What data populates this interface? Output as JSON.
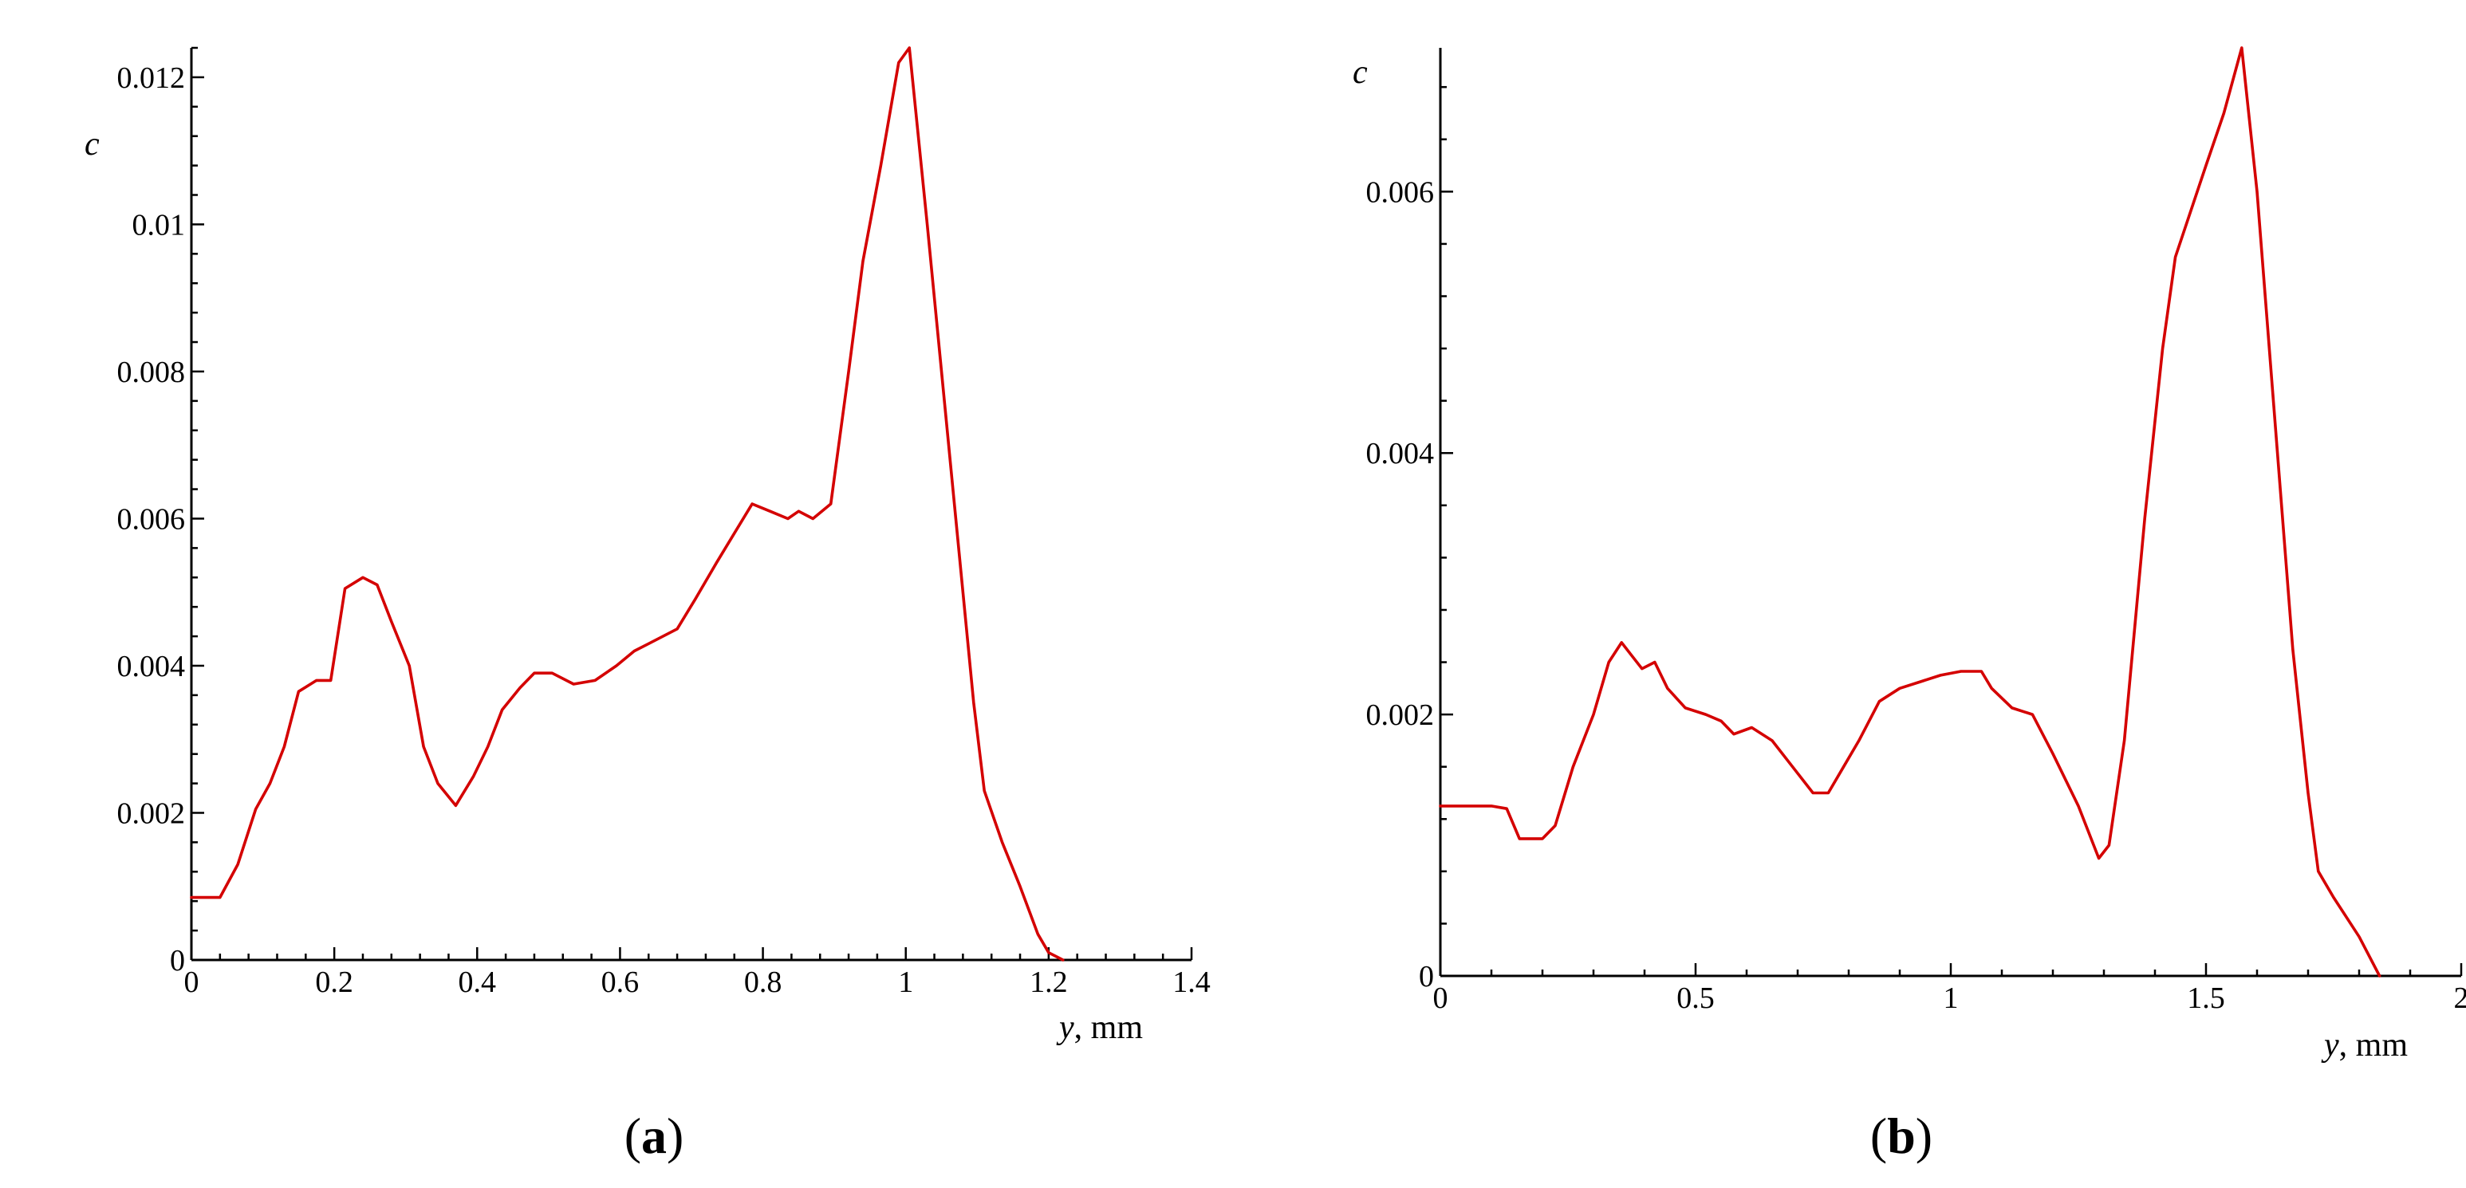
{
  "chart_data": [
    {
      "type": "line",
      "panel_label": "a",
      "ylabel": "c",
      "xlabel_var": "y",
      "xlabel_unit": ", mm",
      "xlim": [
        0,
        1.4
      ],
      "ylim": [
        0,
        0.0124
      ],
      "x_ticks": [
        {
          "value": 0,
          "label": "0"
        },
        {
          "value": 0.2,
          "label": "0.2"
        },
        {
          "value": 0.4,
          "label": "0.4"
        },
        {
          "value": 0.6,
          "label": "0.6"
        },
        {
          "value": 0.8,
          "label": "0.8"
        },
        {
          "value": 1,
          "label": "1"
        },
        {
          "value": 1.2,
          "label": "1.2"
        },
        {
          "value": 1.4,
          "label": "1.4"
        }
      ],
      "y_ticks": [
        {
          "value": 0,
          "label": "0"
        },
        {
          "value": 0.002,
          "label": "0.002"
        },
        {
          "value": 0.004,
          "label": "0.004"
        },
        {
          "value": 0.006,
          "label": "0.006"
        },
        {
          "value": 0.008,
          "label": "0.008"
        },
        {
          "value": 0.01,
          "label": "0.01"
        },
        {
          "value": 0.012,
          "label": "0.012"
        }
      ],
      "color": "#d40000",
      "series": [
        {
          "x": [
            0,
            0.04,
            0.065,
            0.09,
            0.11,
            0.13,
            0.15,
            0.175,
            0.195,
            0.215,
            0.24,
            0.26,
            0.28,
            0.305,
            0.325,
            0.345,
            0.37,
            0.395,
            0.415,
            0.435,
            0.46,
            0.48,
            0.505,
            0.535,
            0.565,
            0.595,
            0.62,
            0.64,
            0.68,
            0.705,
            0.735,
            0.76,
            0.785,
            0.81,
            0.835,
            0.85,
            0.87,
            0.895,
            0.92,
            0.94,
            0.965,
            0.99,
            1.005,
            1.03,
            1.055,
            1.075,
            1.095,
            1.11,
            1.135,
            1.16,
            1.185,
            1.2,
            1.22
          ],
          "y": [
            0.00085,
            0.00085,
            0.0013,
            0.00205,
            0.0024,
            0.0029,
            0.00365,
            0.0038,
            0.0038,
            0.00505,
            0.0052,
            0.0051,
            0.0046,
            0.004,
            0.0029,
            0.0024,
            0.0021,
            0.0025,
            0.0029,
            0.0034,
            0.0037,
            0.0039,
            0.0039,
            0.00375,
            0.0038,
            0.004,
            0.0042,
            0.0043,
            0.0045,
            0.0049,
            0.0054,
            0.0058,
            0.0062,
            0.0061,
            0.006,
            0.0061,
            0.006,
            0.0062,
            0.008,
            0.0095,
            0.0108,
            0.0122,
            0.0124,
            0.01,
            0.0075,
            0.0055,
            0.0035,
            0.0023,
            0.0016,
            0.001,
            0.00035,
            0.0001,
            0.0
          ]
        }
      ]
    },
    {
      "type": "line",
      "panel_label": "b",
      "ylabel": "c",
      "xlabel_var": "y",
      "xlabel_unit": ", mm",
      "xlim": [
        0,
        2
      ],
      "ylim": [
        0,
        0.0071
      ],
      "x_ticks": [
        {
          "value": 0,
          "label": "0"
        },
        {
          "value": 0.5,
          "label": "0.5"
        },
        {
          "value": 1,
          "label": "1"
        },
        {
          "value": 1.5,
          "label": "1.5"
        },
        {
          "value": 2,
          "label": "2"
        }
      ],
      "y_ticks": [
        {
          "value": 0,
          "label": "0"
        },
        {
          "value": 0.002,
          "label": "0.002"
        },
        {
          "value": 0.004,
          "label": "0.004"
        },
        {
          "value": 0.006,
          "label": "0.006"
        }
      ],
      "color": "#d40000",
      "series": [
        {
          "x": [
            0,
            0.1,
            0.13,
            0.155,
            0.2,
            0.225,
            0.26,
            0.3,
            0.33,
            0.355,
            0.375,
            0.395,
            0.42,
            0.445,
            0.48,
            0.52,
            0.55,
            0.575,
            0.61,
            0.65,
            0.69,
            0.73,
            0.76,
            0.79,
            0.82,
            0.86,
            0.9,
            0.94,
            0.98,
            1.02,
            1.06,
            1.08,
            1.12,
            1.16,
            1.2,
            1.25,
            1.29,
            1.31,
            1.34,
            1.38,
            1.415,
            1.44,
            1.5,
            1.535,
            1.57,
            1.6,
            1.63,
            1.67,
            1.7,
            1.72,
            1.75,
            1.8,
            1.84
          ],
          "y": [
            0.0013,
            0.0013,
            0.00128,
            0.00105,
            0.00105,
            0.00115,
            0.0016,
            0.002,
            0.0024,
            0.00255,
            0.00245,
            0.00235,
            0.0024,
            0.0022,
            0.00205,
            0.002,
            0.00195,
            0.00185,
            0.0019,
            0.0018,
            0.0016,
            0.0014,
            0.0014,
            0.0016,
            0.0018,
            0.0021,
            0.0022,
            0.00225,
            0.0023,
            0.00233,
            0.00233,
            0.0022,
            0.00205,
            0.002,
            0.0017,
            0.0013,
            0.0009,
            0.001,
            0.0018,
            0.0035,
            0.0048,
            0.0055,
            0.0062,
            0.0066,
            0.0071,
            0.006,
            0.0045,
            0.0025,
            0.0014,
            0.0008,
            0.0006,
            0.0003,
            0.0
          ]
        }
      ]
    }
  ]
}
